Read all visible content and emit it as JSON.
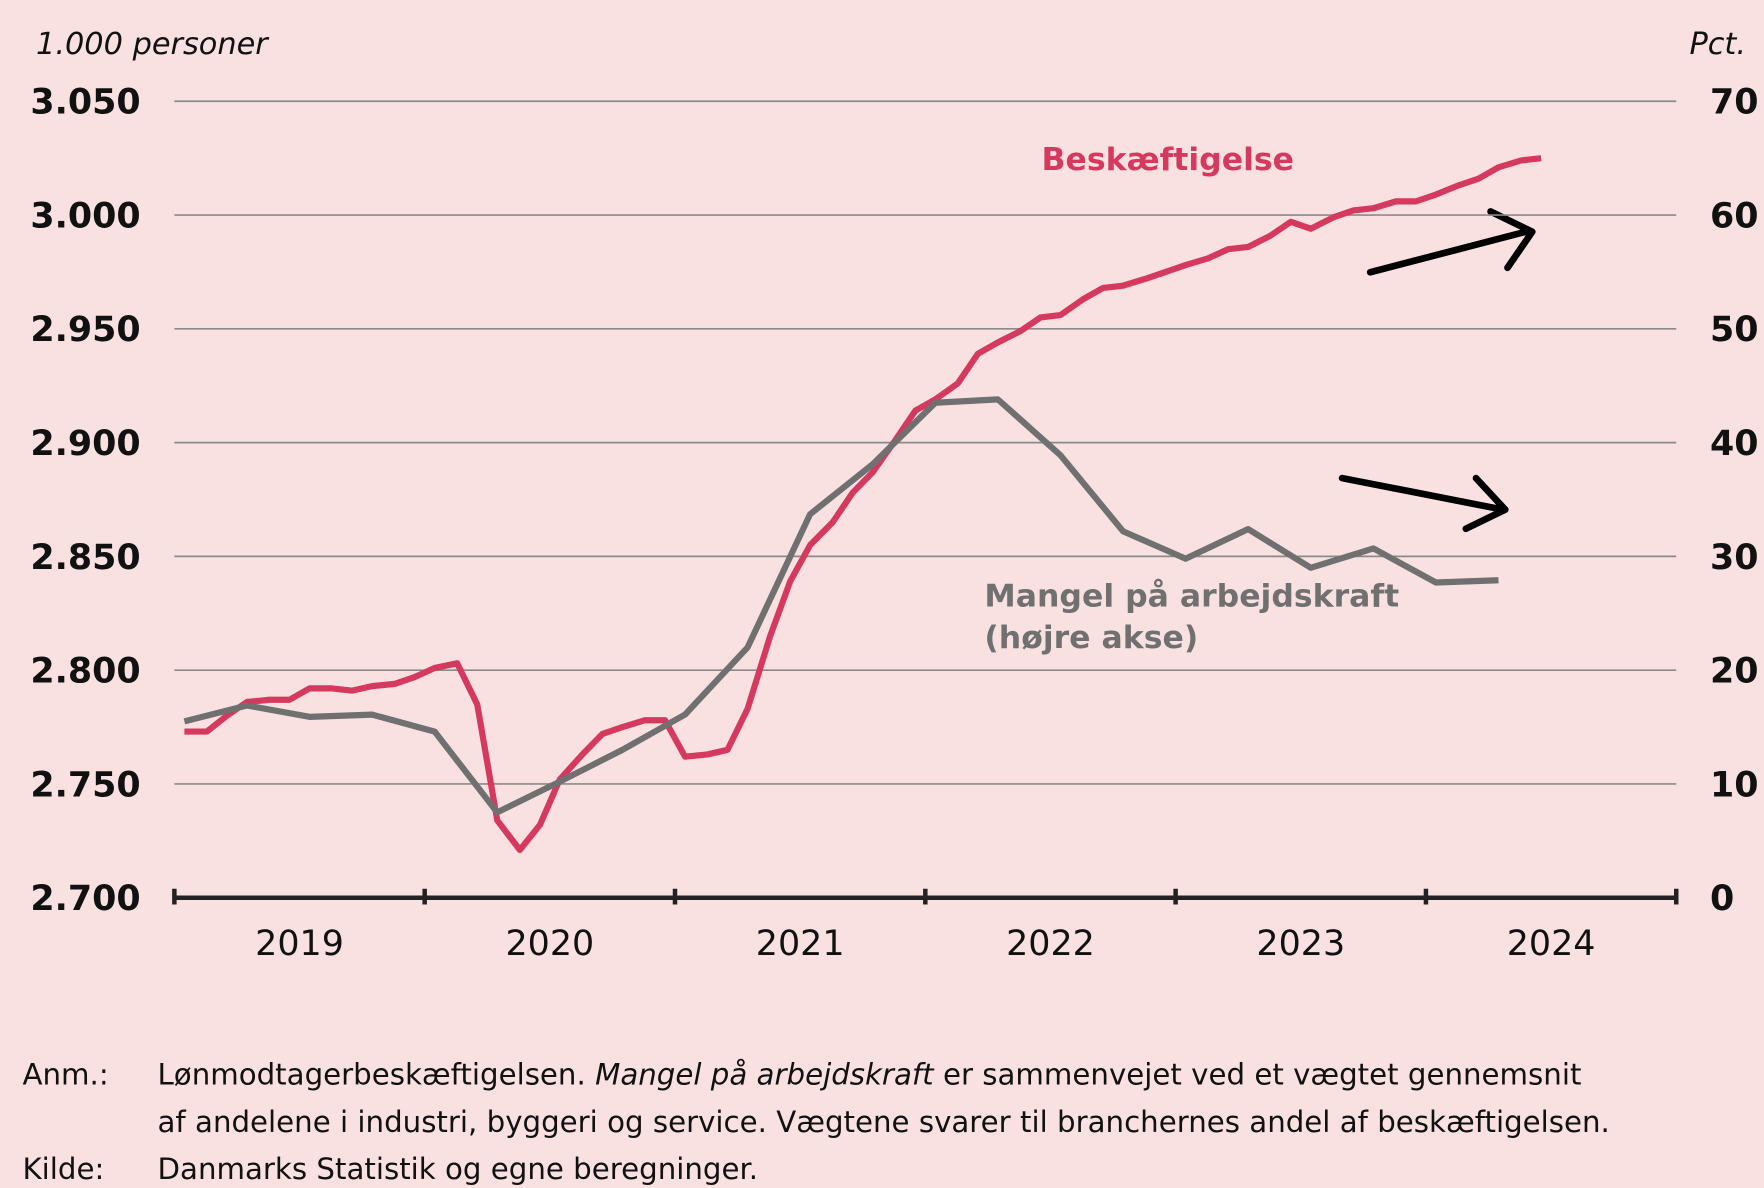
{
  "chart_data": {
    "type": "line",
    "y_axis_label": "1.000 personer",
    "y2_axis_label": "Pct.",
    "xlim": [
      2019,
      2025
    ],
    "xticks": [
      {
        "value": 2019.5,
        "label": "2019"
      },
      {
        "value": 2020.5,
        "label": "2020"
      },
      {
        "value": 2021.5,
        "label": "2021"
      },
      {
        "value": 2022.5,
        "label": "2022"
      },
      {
        "value": 2023.5,
        "label": "2023"
      },
      {
        "value": 2024.5,
        "label": "2024"
      }
    ],
    "ylim": [
      2700,
      3050
    ],
    "yticks": [
      {
        "value": 2700,
        "label": "2.700"
      },
      {
        "value": 2750,
        "label": "2.750"
      },
      {
        "value": 2800,
        "label": "2.800"
      },
      {
        "value": 2850,
        "label": "2.850"
      },
      {
        "value": 2900,
        "label": "2.900"
      },
      {
        "value": 2950,
        "label": "2.950"
      },
      {
        "value": 3000,
        "label": "3.000"
      },
      {
        "value": 3050,
        "label": "3.050"
      }
    ],
    "y2lim": [
      0,
      70
    ],
    "y2ticks": [
      0,
      10,
      20,
      30,
      40,
      50,
      60,
      70
    ],
    "grid": true,
    "series": [
      {
        "name": "Beskæftigelse",
        "color": "#d6395e",
        "x": [
          2019.04,
          2019.13,
          2019.21,
          2019.29,
          2019.38,
          2019.46,
          2019.54,
          2019.63,
          2019.71,
          2019.79,
          2019.88,
          2019.96,
          2020.04,
          2020.13,
          2020.21,
          2020.29,
          2020.38,
          2020.46,
          2020.54,
          2020.63,
          2020.71,
          2020.79,
          2020.88,
          2020.96,
          2021.04,
          2021.13,
          2021.21,
          2021.29,
          2021.38,
          2021.46,
          2021.54,
          2021.63,
          2021.71,
          2021.79,
          2021.88,
          2021.96,
          2022.04,
          2022.13,
          2022.21,
          2022.29,
          2022.38,
          2022.46,
          2022.54,
          2022.63,
          2022.71,
          2022.79,
          2022.88,
          2022.96,
          2023.04,
          2023.13,
          2023.21,
          2023.29,
          2023.38,
          2023.46,
          2023.54,
          2023.63,
          2023.71,
          2023.79,
          2023.88,
          2023.96,
          2024.04,
          2024.13,
          2024.21,
          2024.29,
          2024.38,
          2024.46
        ],
        "values": [
          2773,
          2773,
          2780,
          2786,
          2787,
          2787,
          2792,
          2792,
          2791,
          2793,
          2794,
          2797,
          2801,
          2803,
          2785,
          2734,
          2721,
          2732,
          2752,
          2763,
          2772,
          2775,
          2778,
          2778,
          2762,
          2763,
          2765,
          2783,
          2815,
          2839,
          2855,
          2865,
          2878,
          2887,
          2901,
          2914,
          2919,
          2926,
          2939,
          2944,
          2949,
          2955,
          2956,
          2963,
          2968,
          2969,
          2972,
          2975,
          2978,
          2981,
          2985,
          2986,
          2991,
          2997,
          2994,
          2999,
          3002,
          3003,
          3006,
          3006,
          3009,
          3013,
          3016,
          3021,
          3024,
          3025
        ]
      },
      {
        "name": "Mangel på arbejdskraft",
        "name_line2": "(højre akse)",
        "color": "#707070",
        "axis": "y2",
        "x": [
          2019.04,
          2019.29,
          2019.54,
          2019.79,
          2020.04,
          2020.29,
          2020.54,
          2020.79,
          2021.04,
          2021.29,
          2021.54,
          2021.79,
          2022.04,
          2022.29,
          2022.54,
          2022.79,
          2023.04,
          2023.29,
          2023.54,
          2023.79,
          2024.04,
          2024.29
        ],
        "values": [
          15.5,
          16.9,
          15.9,
          16.1,
          14.6,
          7.5,
          10.2,
          13.0,
          16.1,
          22.0,
          33.7,
          38.1,
          43.5,
          43.8,
          38.9,
          32.2,
          29.8,
          32.4,
          29.0,
          30.7,
          27.7,
          27.9
        ]
      }
    ]
  },
  "notes": [
    {
      "label": "Anm.:",
      "lines": [
        [
          "Lønmodtagerbeskæftigelsen. ",
          "Mangel på arbejdskraft",
          " er sammenvejet ved et vægtet gennemsnit"
        ],
        [
          "af andelene i industri, byggeri og service. Vægtene svarer til branchernes andel af beskæftigelsen."
        ]
      ]
    },
    {
      "label": "Kilde:",
      "lines": [
        [
          "Danmarks Statistik og egne beregninger."
        ]
      ]
    }
  ]
}
